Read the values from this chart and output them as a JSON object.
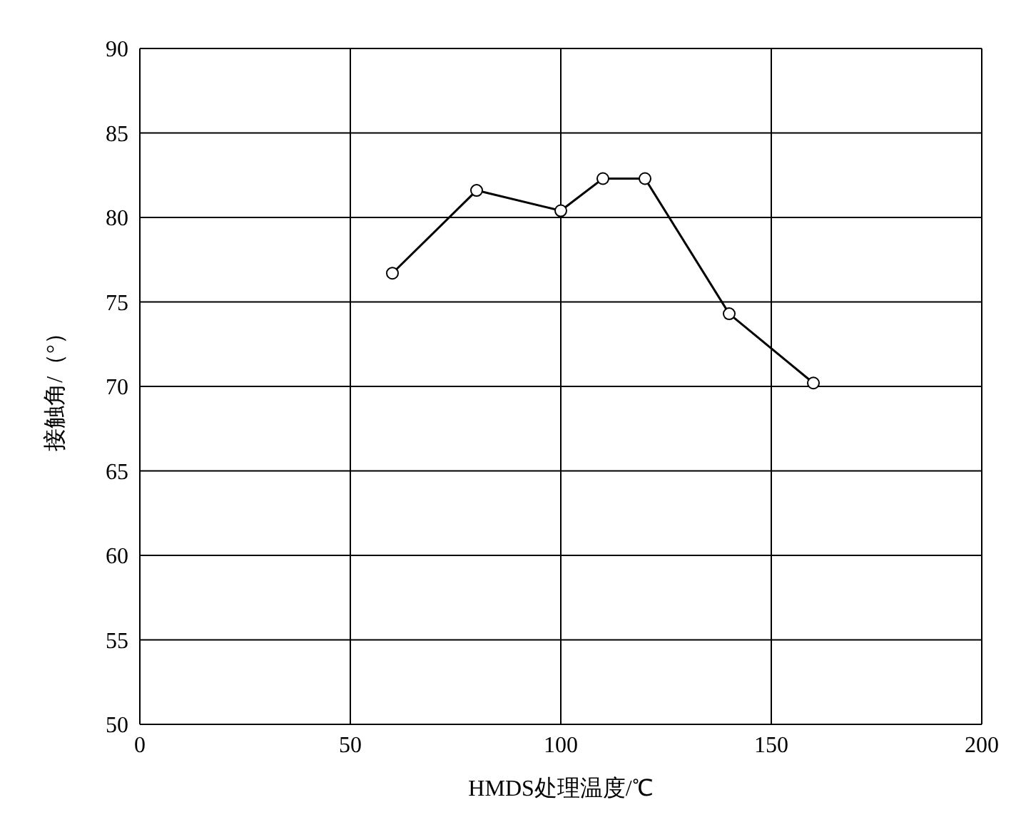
{
  "chart_data": {
    "type": "line",
    "xlabel": "HMDS处理温度/℃",
    "ylabel": "接触角/（°）",
    "x": [
      60,
      80,
      100,
      110,
      120,
      140,
      160
    ],
    "series": [
      {
        "color": "#000000",
        "values": [
          76.7,
          81.6,
          80.4,
          82.3,
          82.3,
          74.3,
          70.2
        ]
      }
    ],
    "xlim": [
      0,
      200
    ],
    "xticks": [
      0,
      50,
      100,
      150,
      200
    ],
    "ylim": [
      50,
      90
    ],
    "yticks": [
      50,
      55,
      60,
      65,
      70,
      75,
      80,
      85,
      90
    ],
    "grid": true,
    "marker": "circle",
    "line_style": "solid",
    "legend": false
  }
}
